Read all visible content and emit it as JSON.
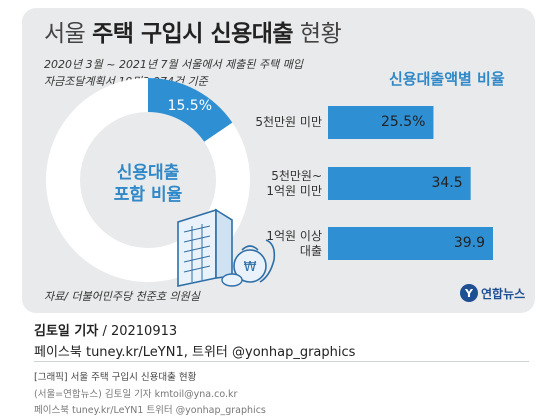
{
  "title": {
    "light": "서울",
    "bold": "주택 구입시 신용대출",
    "tail": "현황"
  },
  "subtitle_line1": "2020년 3월 ~ 2021년 7월 서울에서 제출된 주택 매입",
  "subtitle_line2": "자금조달계획서 19만3,974건 기준",
  "right_heading": "신용대출액별 비율",
  "source": "자료/ 더불어민주당 천준호 의원실",
  "logo": {
    "mark": "Y",
    "text": "연합뉴스"
  },
  "colors": {
    "accent": "#2f88c8",
    "bar": "#2f8fd3",
    "donut_bg": "#ffffff",
    "card": "#e9eaeb"
  },
  "chart_data": [
    {
      "type": "pie",
      "subtype": "donut",
      "center_label_line1": "신용대출",
      "center_label_line2": "포함 비율",
      "slices": [
        {
          "label": "15.5%",
          "value": 15.5,
          "color": "#2f8fd3"
        },
        {
          "value": 84.5,
          "color": "#ffffff"
        }
      ]
    },
    {
      "type": "bar",
      "orientation": "horizontal",
      "title": "신용대출액별 비율",
      "categories": [
        [
          "5천만원 미만"
        ],
        [
          "5천만원~",
          "1억원 미만"
        ],
        [
          "1억원 이상",
          "대출"
        ]
      ],
      "values": [
        25.5,
        34.5,
        39.9
      ],
      "value_labels": [
        "25.5%",
        "34.5",
        "39.9"
      ]
    }
  ],
  "credit": {
    "author": "김토일 기자",
    "date": " / 20210913",
    "line2": "페이스북 tuney.kr/LeYN1, 트위터 @yonhap_graphics"
  },
  "footer": {
    "line1": "[그래픽] 서울 주택 구입시 신용대출 현황",
    "line2": "(서울=연합뉴스) 김토일 기자 kmtoil@yna.co.kr",
    "line3": "페이스북 tuney.kr/LeYN1 트위터 @yonhap_graphics"
  }
}
